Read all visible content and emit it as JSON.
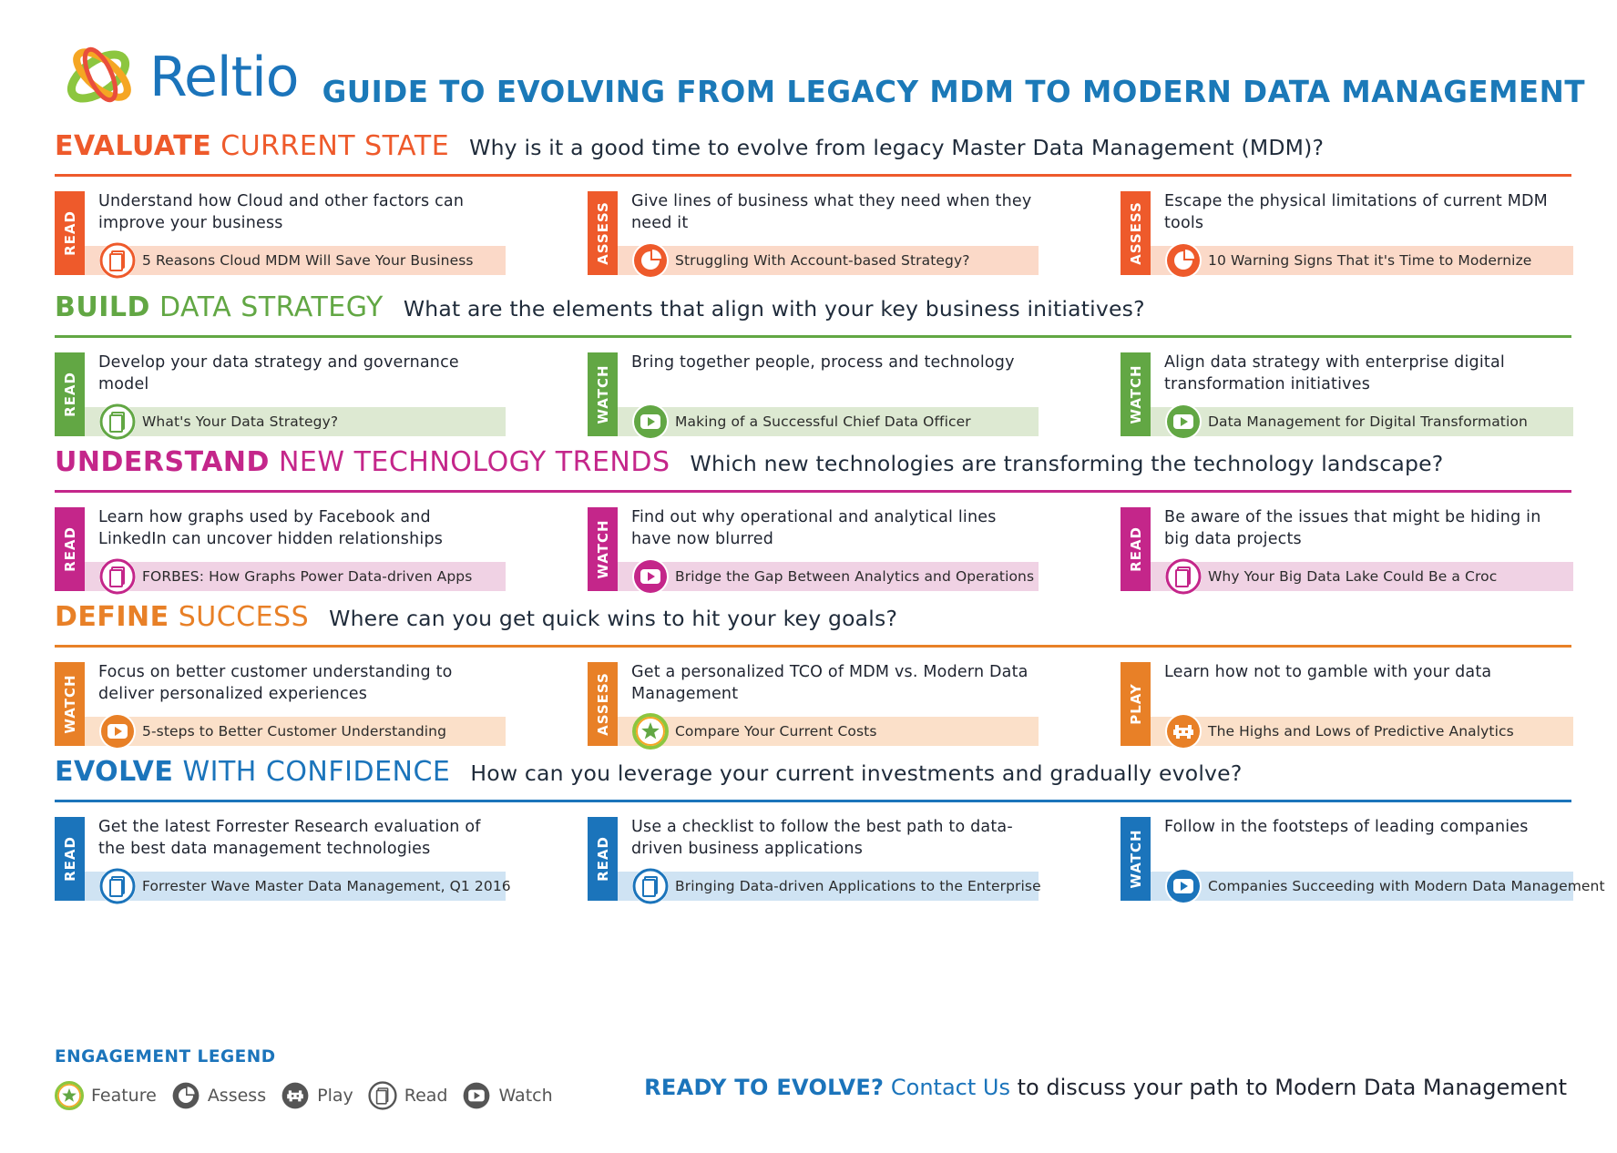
{
  "header": {
    "logo_text": "Reltio",
    "title": "GUIDE TO EVOLVING FROM LEGACY MDM TO MODERN DATA MANAGEMENT"
  },
  "colors": {
    "orange_red": "#ee5a2b",
    "green": "#62a744",
    "magenta": "#c4268a",
    "orange": "#e88027",
    "blue": "#1b74bb"
  },
  "sections": [
    {
      "title_bold": "EVALUATE",
      "title_rest": "CURRENT STATE",
      "question": "Why is it a good time to evolve from legacy Master Data Management (MDM)?",
      "color": "#ee5a2b",
      "tint": "#fbd9c8",
      "cards": [
        {
          "tag": "READ",
          "desc": "Understand how Cloud and other factors can improve your business",
          "link": "5 Reasons Cloud MDM Will Save Your Business",
          "icon": "read-icon"
        },
        {
          "tag": "ASSESS",
          "desc": "Give lines of business what they need when they need it",
          "link": "Struggling With Account-based Strategy?",
          "icon": "assess-icon"
        },
        {
          "tag": "ASSESS",
          "desc": "Escape the physical limitations of current MDM tools",
          "link": "10 Warning Signs That it's Time to Modernize",
          "icon": "assess-icon"
        }
      ]
    },
    {
      "title_bold": "BUILD",
      "title_rest": "DATA STRATEGY",
      "question": "What are the elements that align with your key business initiatives?",
      "color": "#62a744",
      "tint": "#dde9d2",
      "cards": [
        {
          "tag": "READ",
          "desc": "Develop your data strategy and governance model",
          "link": "What's Your Data Strategy?",
          "icon": "read-icon"
        },
        {
          "tag": "WATCH",
          "desc": "Bring together people, process and technology",
          "link": "Making of a Successful Chief Data Officer",
          "icon": "watch-icon"
        },
        {
          "tag": "WATCH",
          "desc": "Align data strategy with enterprise digital transformation initiatives",
          "link": "Data Management for Digital Transformation",
          "icon": "watch-icon"
        }
      ]
    },
    {
      "title_bold": "UNDERSTAND",
      "title_rest": "NEW TECHNOLOGY TRENDS",
      "question": "Which new technologies are transforming the technology landscape?",
      "color": "#c4268a",
      "tint": "#f0d2e4",
      "cards": [
        {
          "tag": "READ",
          "desc": "Learn how graphs used by Facebook and LinkedIn can uncover hidden relationships",
          "link": "FORBES: How Graphs Power Data-driven Apps",
          "icon": "read-icon"
        },
        {
          "tag": "WATCH",
          "desc": "Find out why operational and analytical lines have now blurred",
          "link": "Bridge the Gap Between Analytics and Operations",
          "icon": "watch-icon"
        },
        {
          "tag": "READ",
          "desc": "Be aware of the issues that might be hiding in big data projects",
          "link": "Why Your Big Data Lake Could Be a Croc",
          "icon": "read-icon"
        }
      ]
    },
    {
      "title_bold": "DEFINE",
      "title_rest": "SUCCESS",
      "question": "Where can you get quick wins to hit your key goals?",
      "color": "#e88027",
      "tint": "#fbe0c9",
      "cards": [
        {
          "tag": "WATCH",
          "desc": "Focus on better customer understanding to deliver personalized experiences",
          "link": "5-steps to Better Customer Understanding",
          "icon": "watch-icon"
        },
        {
          "tag": "ASSESS",
          "desc": "Get a personalized TCO of MDM vs. Modern Data Management",
          "link": "Compare Your Current Costs",
          "icon": "feature-icon"
        },
        {
          "tag": "PLAY",
          "desc": "Learn how not to gamble with your data",
          "link": "The Highs and Lows of Predictive Analytics",
          "icon": "play-icon"
        }
      ]
    },
    {
      "title_bold": "EVOLVE",
      "title_rest": "WITH CONFIDENCE",
      "question": "How can you leverage your current investments and gradually evolve?",
      "color": "#1b74bb",
      "tint": "#cfe3f3",
      "cards": [
        {
          "tag": "READ",
          "desc": "Get the latest Forrester Research evaluation of the best data management technologies",
          "link": "Forrester Wave Master Data Management, Q1 2016",
          "icon": "read-icon"
        },
        {
          "tag": "READ",
          "desc": "Use a checklist to follow the best path to data-driven business applications",
          "link": "Bringing Data-driven Applications to the Enterprise",
          "icon": "read-icon"
        },
        {
          "tag": "WATCH",
          "desc": "Follow in the footsteps of leading companies",
          "link": "Companies Succeeding with Modern Data Management",
          "icon": "watch-icon"
        }
      ]
    }
  ],
  "legend": {
    "title": "ENGAGEMENT LEGEND",
    "items": [
      {
        "label": "Feature",
        "icon": "feature-icon"
      },
      {
        "label": "Assess",
        "icon": "assess-icon"
      },
      {
        "label": "Play",
        "icon": "play-icon"
      },
      {
        "label": "Read",
        "icon": "read-icon"
      },
      {
        "label": "Watch",
        "icon": "watch-icon"
      }
    ]
  },
  "cta": {
    "strong": "READY TO EVOLVE?",
    "link": "Contact Us",
    "rest": "to discuss your path to Modern Data Management"
  }
}
